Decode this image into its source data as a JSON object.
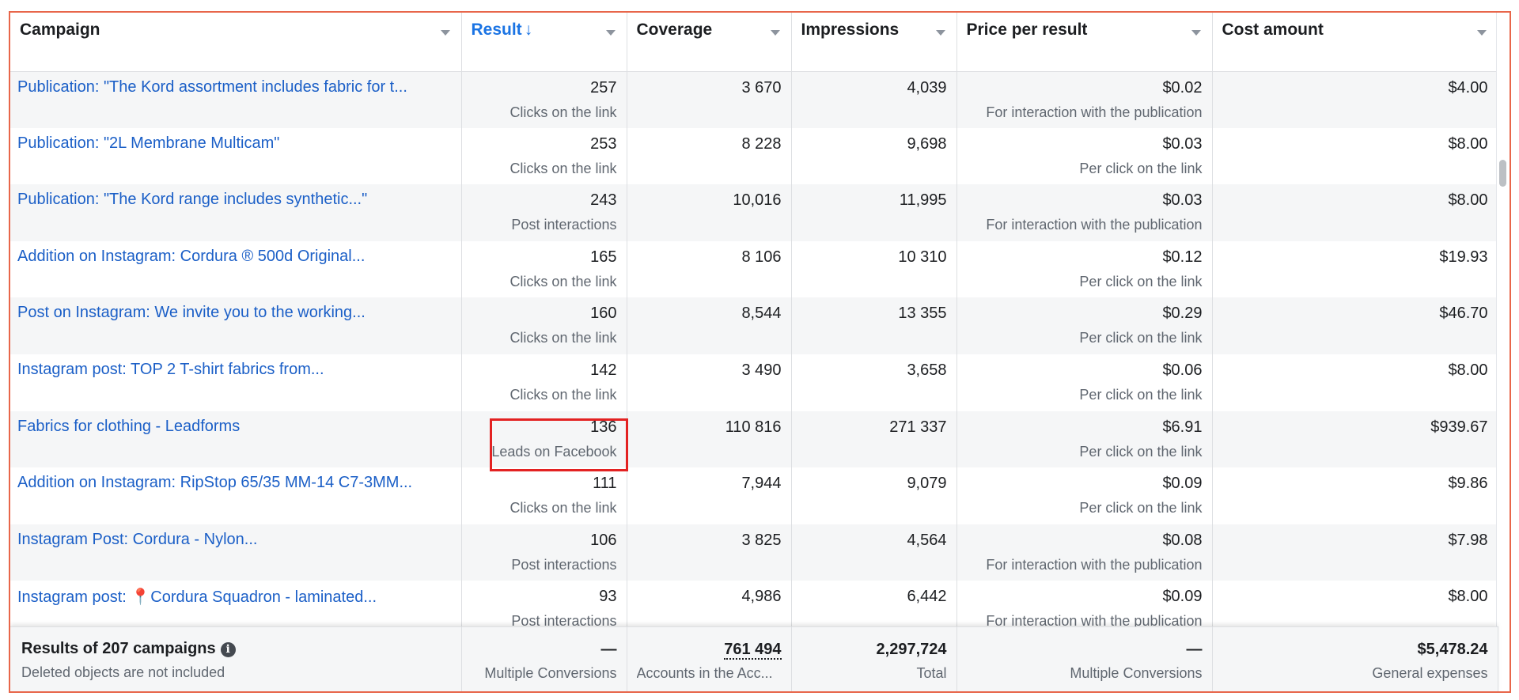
{
  "columns": [
    {
      "label": "Campaign"
    },
    {
      "label": "Result",
      "sort_indicator": "↓"
    },
    {
      "label": "Coverage"
    },
    {
      "label": "Impressions"
    },
    {
      "label": "Price per result"
    },
    {
      "label": "Cost amount"
    }
  ],
  "rows": [
    {
      "campaign": "Publication: \"The Kord assortment includes fabric for t...",
      "result": "257",
      "result_type": "Clicks on the link",
      "coverage": "3 670",
      "impressions": "4,039",
      "price": "$0.02",
      "price_type": "For interaction with the publication",
      "cost": "$4.00"
    },
    {
      "campaign": "Publication: \"2L Membrane Multicam\"",
      "result": "253",
      "result_type": "Clicks on the link",
      "coverage": "8 228",
      "impressions": "9,698",
      "price": "$0.03",
      "price_type": "Per click on the link",
      "cost": "$8.00"
    },
    {
      "campaign": "Publication: \"The Kord range includes synthetic...\"",
      "result": "243",
      "result_type": "Post interactions",
      "coverage": "10,016",
      "impressions": "11,995",
      "price": "$0.03",
      "price_type": "For interaction with the publication",
      "cost": "$8.00"
    },
    {
      "campaign": "Addition on Instagram: Cordura ® 500d Original...",
      "result": "165",
      "result_type": "Clicks on the link",
      "coverage": "8 106",
      "impressions": "10 310",
      "price": "$0.12",
      "price_type": "Per click on the link",
      "cost": "$19.93"
    },
    {
      "campaign": "Post on Instagram: We invite you to the working...",
      "result": "160",
      "result_type": "Clicks on the link",
      "coverage": "8,544",
      "impressions": "13 355",
      "price": "$0.29",
      "price_type": "Per click on the link",
      "cost": "$46.70"
    },
    {
      "campaign": "Instagram post: TOP 2 T-shirt fabrics from...",
      "result": "142",
      "result_type": "Clicks on the link",
      "coverage": "3 490",
      "impressions": "3,658",
      "price": "$0.06",
      "price_type": "Per click on the link",
      "cost": "$8.00"
    },
    {
      "campaign": "Fabrics for clothing - Leadforms",
      "result": "136",
      "result_type": "Leads on Facebook",
      "coverage": "110 816",
      "impressions": "271 337",
      "price": "$6.91",
      "price_type": "Per click on the link",
      "cost": "$939.67"
    },
    {
      "campaign": "Addition on Instagram: RipStop 65/35 MM-14 C7-3MM...",
      "result": "111",
      "result_type": "Clicks on the link",
      "coverage": "7,944",
      "impressions": "9,079",
      "price": "$0.09",
      "price_type": "Per click on the link",
      "cost": "$9.86"
    },
    {
      "campaign": "Instagram Post: Cordura - Nylon...",
      "result": "106",
      "result_type": "Post interactions",
      "coverage": "3 825",
      "impressions": "4,564",
      "price": "$0.08",
      "price_type": "For interaction with the publication",
      "cost": "$7.98"
    },
    {
      "campaign": "Instagram post: 📍Cordura Squadron - laminated...",
      "result": "93",
      "result_type": "Post interactions",
      "coverage": "4,986",
      "impressions": "6,442",
      "price": "$0.09",
      "price_type": "For interaction with the publication",
      "cost": "$8.00"
    }
  ],
  "footer": {
    "title": "Results of 207 campaigns",
    "note": "Deleted objects are not included",
    "info_icon": "info-icon",
    "result": "—",
    "result_sub": "Multiple Conversions",
    "coverage": "761 494",
    "coverage_sub": "Accounts in the Acc...",
    "impressions": "2,297,724",
    "impressions_sub": "Total",
    "price": "—",
    "price_sub": "Multiple Conversions",
    "cost": "$5,478.24",
    "cost_sub": "General expenses"
  },
  "colors": {
    "accent": "#1b74e4",
    "link": "#1b5fc7",
    "frame_border": "#e8664a",
    "highlight_box": "#e32222"
  }
}
